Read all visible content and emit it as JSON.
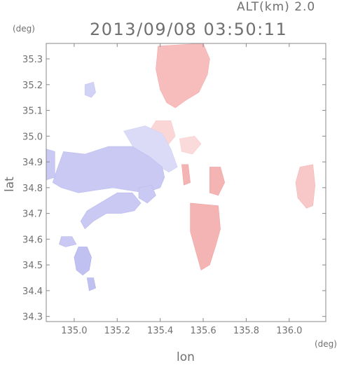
{
  "header": {
    "altitude": "ALT(km) 2.0",
    "timestamp": "2013/09/08 03:50:11"
  },
  "chart_data": {
    "type": "heatmap",
    "title": "2013/09/08 03:50:11",
    "subtitle": "ALT(km) 2.0",
    "xlabel": "lon",
    "ylabel": "lat",
    "x_unit": "(deg)",
    "y_unit": "(deg)",
    "xlim": [
      134.87,
      136.17
    ],
    "ylim": [
      34.28,
      35.36
    ],
    "x_ticks": [
      135.0,
      135.2,
      135.4,
      135.6,
      135.8,
      136.0
    ],
    "x_tick_labels": [
      "135.0",
      "135.2",
      "135.4",
      "135.6",
      "135.8",
      "136.0"
    ],
    "y_ticks": [
      34.3,
      34.4,
      34.5,
      34.6,
      34.7,
      34.8,
      34.9,
      35.0,
      35.1,
      35.2,
      35.3
    ],
    "y_tick_labels": [
      "34.3",
      "34.4",
      "34.5",
      "34.6",
      "34.7",
      "34.8",
      "34.9",
      "35.0",
      "35.1",
      "35.2",
      "35.3"
    ],
    "colors": {
      "positive": "#f08a8a",
      "negative": "#8e8ee6",
      "frame": "#888888",
      "text": "#707070"
    },
    "regions": [
      {
        "sign": "positive",
        "intensity": 0.35,
        "polygon": [
          [
            135.39,
            35.35
          ],
          [
            135.6,
            35.36
          ],
          [
            135.63,
            35.3
          ],
          [
            135.62,
            35.24
          ],
          [
            135.58,
            35.17
          ],
          [
            135.52,
            35.14
          ],
          [
            135.47,
            35.11
          ],
          [
            135.43,
            35.13
          ],
          [
            135.4,
            35.18
          ],
          [
            135.38,
            35.26
          ]
        ]
      },
      {
        "sign": "positive",
        "intensity": 0.22,
        "polygon": [
          [
            135.38,
            35.06
          ],
          [
            135.45,
            35.06
          ],
          [
            135.47,
            35.0
          ],
          [
            135.44,
            34.97
          ],
          [
            135.38,
            34.98
          ],
          [
            135.35,
            35.02
          ]
        ]
      },
      {
        "sign": "positive",
        "intensity": 0.2,
        "polygon": [
          [
            135.49,
            34.99
          ],
          [
            135.56,
            35.0
          ],
          [
            135.59,
            34.97
          ],
          [
            135.55,
            34.93
          ],
          [
            135.5,
            34.94
          ]
        ]
      },
      {
        "sign": "positive",
        "intensity": 0.3,
        "polygon": [
          [
            136.05,
            34.88
          ],
          [
            136.11,
            34.89
          ],
          [
            136.12,
            34.81
          ],
          [
            136.11,
            34.73
          ],
          [
            136.08,
            34.72
          ],
          [
            136.04,
            34.76
          ],
          [
            136.03,
            34.82
          ]
        ]
      },
      {
        "sign": "negative",
        "intensity": 0.2,
        "polygon": [
          [
            135.23,
            35.02
          ],
          [
            135.33,
            35.04
          ],
          [
            135.41,
            35.01
          ],
          [
            135.45,
            34.95
          ],
          [
            135.48,
            34.88
          ],
          [
            135.44,
            34.86
          ],
          [
            135.36,
            34.9
          ],
          [
            135.28,
            34.95
          ]
        ]
      },
      {
        "sign": "negative",
        "intensity": 0.3,
        "polygon": [
          [
            134.95,
            34.94
          ],
          [
            135.05,
            34.93
          ],
          [
            135.16,
            34.96
          ],
          [
            135.27,
            34.96
          ],
          [
            135.35,
            34.92
          ],
          [
            135.41,
            34.88
          ],
          [
            135.42,
            34.84
          ],
          [
            135.4,
            34.8
          ],
          [
            135.33,
            34.78
          ],
          [
            135.25,
            34.79
          ],
          [
            135.18,
            34.8
          ],
          [
            135.1,
            34.79
          ],
          [
            135.02,
            34.78
          ],
          [
            134.94,
            34.8
          ],
          [
            134.9,
            34.82
          ],
          [
            134.92,
            34.87
          ]
        ]
      },
      {
        "sign": "negative",
        "intensity": 0.3,
        "polygon": [
          [
            134.87,
            34.95
          ],
          [
            134.91,
            34.94
          ],
          [
            134.91,
            34.84
          ],
          [
            134.87,
            34.83
          ]
        ]
      },
      {
        "sign": "negative",
        "intensity": 0.3,
        "polygon": [
          [
            135.2,
            34.78
          ],
          [
            135.27,
            34.78
          ],
          [
            135.31,
            34.74
          ],
          [
            135.28,
            34.71
          ],
          [
            135.22,
            34.7
          ],
          [
            135.15,
            34.7
          ],
          [
            135.09,
            34.67
          ],
          [
            135.05,
            34.64
          ],
          [
            135.03,
            34.67
          ],
          [
            135.06,
            34.71
          ],
          [
            135.12,
            34.74
          ]
        ]
      },
      {
        "sign": "negative",
        "intensity": 0.3,
        "polygon": [
          [
            135.3,
            34.8
          ],
          [
            135.36,
            34.81
          ],
          [
            135.38,
            34.77
          ],
          [
            135.34,
            34.74
          ],
          [
            135.3,
            34.76
          ]
        ]
      },
      {
        "sign": "negative",
        "intensity": 0.3,
        "polygon": [
          [
            134.94,
            34.61
          ],
          [
            134.99,
            34.61
          ],
          [
            135.01,
            34.58
          ],
          [
            134.96,
            34.57
          ],
          [
            134.93,
            34.58
          ]
        ]
      },
      {
        "sign": "negative",
        "intensity": 0.35,
        "polygon": [
          [
            135.02,
            34.57
          ],
          [
            135.06,
            34.57
          ],
          [
            135.08,
            34.53
          ],
          [
            135.07,
            34.48
          ],
          [
            135.04,
            34.46
          ],
          [
            135.01,
            34.48
          ],
          [
            135.0,
            34.53
          ]
        ]
      },
      {
        "sign": "negative",
        "intensity": 0.35,
        "polygon": [
          [
            135.06,
            34.45
          ],
          [
            135.09,
            34.45
          ],
          [
            135.1,
            34.41
          ],
          [
            135.07,
            34.4
          ]
        ]
      },
      {
        "sign": "negative",
        "intensity": 0.25,
        "polygon": [
          [
            135.05,
            35.2
          ],
          [
            135.09,
            35.21
          ],
          [
            135.1,
            35.17
          ],
          [
            135.08,
            35.15
          ],
          [
            135.05,
            35.16
          ]
        ]
      },
      {
        "sign": "positive",
        "intensity": 0.4,
        "polygon": [
          [
            135.54,
            34.74
          ],
          [
            135.67,
            34.73
          ],
          [
            135.68,
            34.64
          ],
          [
            135.66,
            34.58
          ],
          [
            135.63,
            34.5
          ],
          [
            135.59,
            34.48
          ],
          [
            135.57,
            34.54
          ],
          [
            135.54,
            34.63
          ]
        ]
      },
      {
        "sign": "positive",
        "intensity": 0.4,
        "polygon": [
          [
            135.5,
            34.89
          ],
          [
            135.53,
            34.89
          ],
          [
            135.54,
            34.82
          ],
          [
            135.51,
            34.81
          ]
        ]
      },
      {
        "sign": "positive",
        "intensity": 0.4,
        "polygon": [
          [
            135.63,
            34.88
          ],
          [
            135.68,
            34.88
          ],
          [
            135.7,
            34.82
          ],
          [
            135.67,
            34.77
          ],
          [
            135.63,
            34.78
          ]
        ]
      }
    ]
  }
}
